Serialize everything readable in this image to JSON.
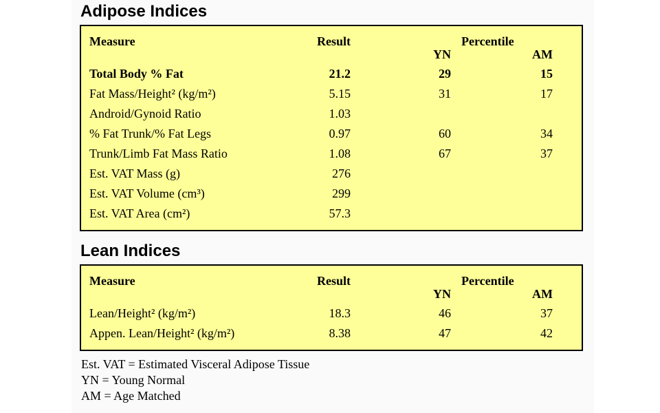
{
  "adipose": {
    "title": "Adipose Indices",
    "headers": {
      "measure": "Measure",
      "result": "Result",
      "percentile": "Percentile",
      "yn": "YN",
      "am": "AM"
    },
    "rows": [
      {
        "measure": "Total Body % Fat",
        "result": "21.2",
        "yn": "29",
        "am": "15",
        "bold": true
      },
      {
        "measure": "Fat Mass/Height² (kg/m²)",
        "result": "5.15",
        "yn": "31",
        "am": "17"
      },
      {
        "measure": "Android/Gynoid Ratio",
        "result": "1.03",
        "yn": "",
        "am": ""
      },
      {
        "measure": "% Fat Trunk/% Fat Legs",
        "result": "0.97",
        "yn": "60",
        "am": "34"
      },
      {
        "measure": "Trunk/Limb Fat Mass Ratio",
        "result": "1.08",
        "yn": "67",
        "am": "37"
      },
      {
        "measure": "Est. VAT Mass (g)",
        "result": "276",
        "yn": "",
        "am": ""
      },
      {
        "measure": "Est. VAT Volume (cm³)",
        "result": "299",
        "yn": "",
        "am": ""
      },
      {
        "measure": "Est. VAT Area (cm²)",
        "result": "57.3",
        "yn": "",
        "am": ""
      }
    ]
  },
  "lean": {
    "title": "Lean Indices",
    "headers": {
      "measure": "Measure",
      "result": "Result",
      "percentile": "Percentile",
      "yn": "YN",
      "am": "AM"
    },
    "rows": [
      {
        "measure": "Lean/Height² (kg/m²)",
        "result": "18.3",
        "yn": "46",
        "am": "37"
      },
      {
        "measure": "Appen. Lean/Height² (kg/m²)",
        "result": "8.38",
        "yn": "47",
        "am": "42"
      }
    ]
  },
  "legend": [
    "Est. VAT = Estimated Visceral Adipose Tissue",
    "YN = Young Normal",
    "AM = Age Matched"
  ]
}
